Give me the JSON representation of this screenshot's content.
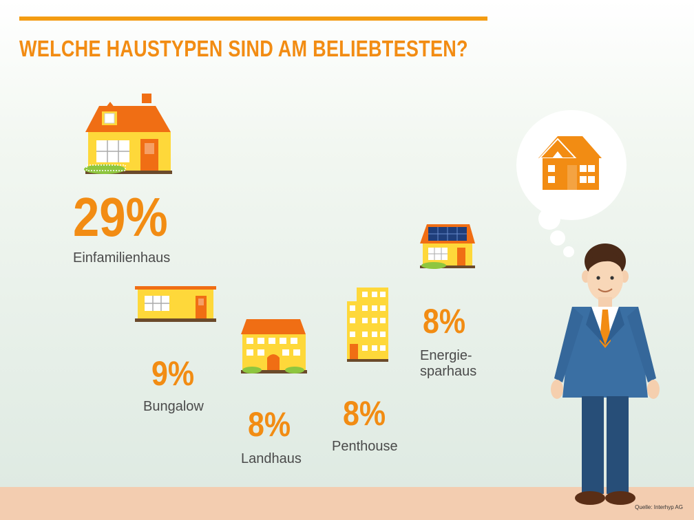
{
  "title": "WELCHE HAUSTYPEN SIND AM BELIEBTESTEN?",
  "source": "Quelle: Interhyp AG",
  "colors": {
    "accent": "#f28c13",
    "wall": "#fed83a",
    "roof": "#f06e14",
    "suit": "#3a6fa3",
    "floor": "#f3cdb0"
  },
  "chart_data": {
    "type": "infographic",
    "title": "WELCHE HAUSTYPEN SIND AM BELIEBTESTEN?",
    "categories": [
      "Einfamilienhaus",
      "Bungalow",
      "Landhaus",
      "Penthouse",
      "Energiesparhaus"
    ],
    "values": [
      29,
      9,
      8,
      8,
      8
    ],
    "unit": "%"
  },
  "items": [
    {
      "value": "29%",
      "label": "Einfamilienhaus",
      "icon": "single-family-house-icon"
    },
    {
      "value": "9%",
      "label": "Bungalow",
      "icon": "bungalow-icon"
    },
    {
      "value": "8%",
      "label": "Landhaus",
      "icon": "country-house-icon"
    },
    {
      "value": "8%",
      "label": "Penthouse",
      "icon": "apartment-tower-icon"
    },
    {
      "value": "8%",
      "label": "Energie-\nsparhaus",
      "icon": "solar-house-icon"
    }
  ]
}
